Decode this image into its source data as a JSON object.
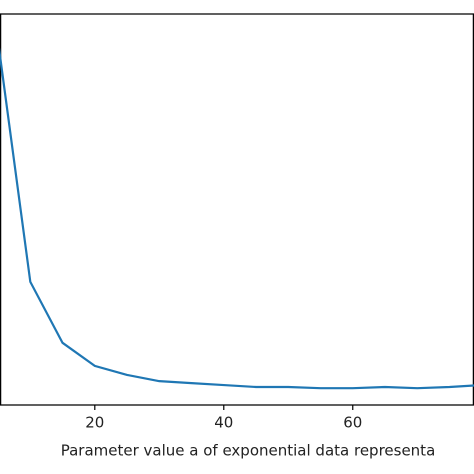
{
  "chart_data": {
    "type": "line",
    "x_label": "Parameter value a of exponential data representa",
    "x": [
      5,
      10,
      15,
      20,
      25,
      30,
      35,
      40,
      45,
      50,
      55,
      60,
      65,
      70,
      75,
      80
    ],
    "series": [
      {
        "color": "#1f77b4",
        "values": [
          0.93,
          0.315,
          0.159,
          0.1,
          0.077,
          0.061,
          0.056,
          0.051,
          0.046,
          0.046,
          0.043,
          0.043,
          0.046,
          0.043,
          0.046,
          0.051
        ]
      }
    ],
    "xlim": [
      5.3,
      78.8
    ],
    "xticks": [
      20,
      40,
      60
    ],
    "ylim": [
      0,
      1
    ]
  }
}
